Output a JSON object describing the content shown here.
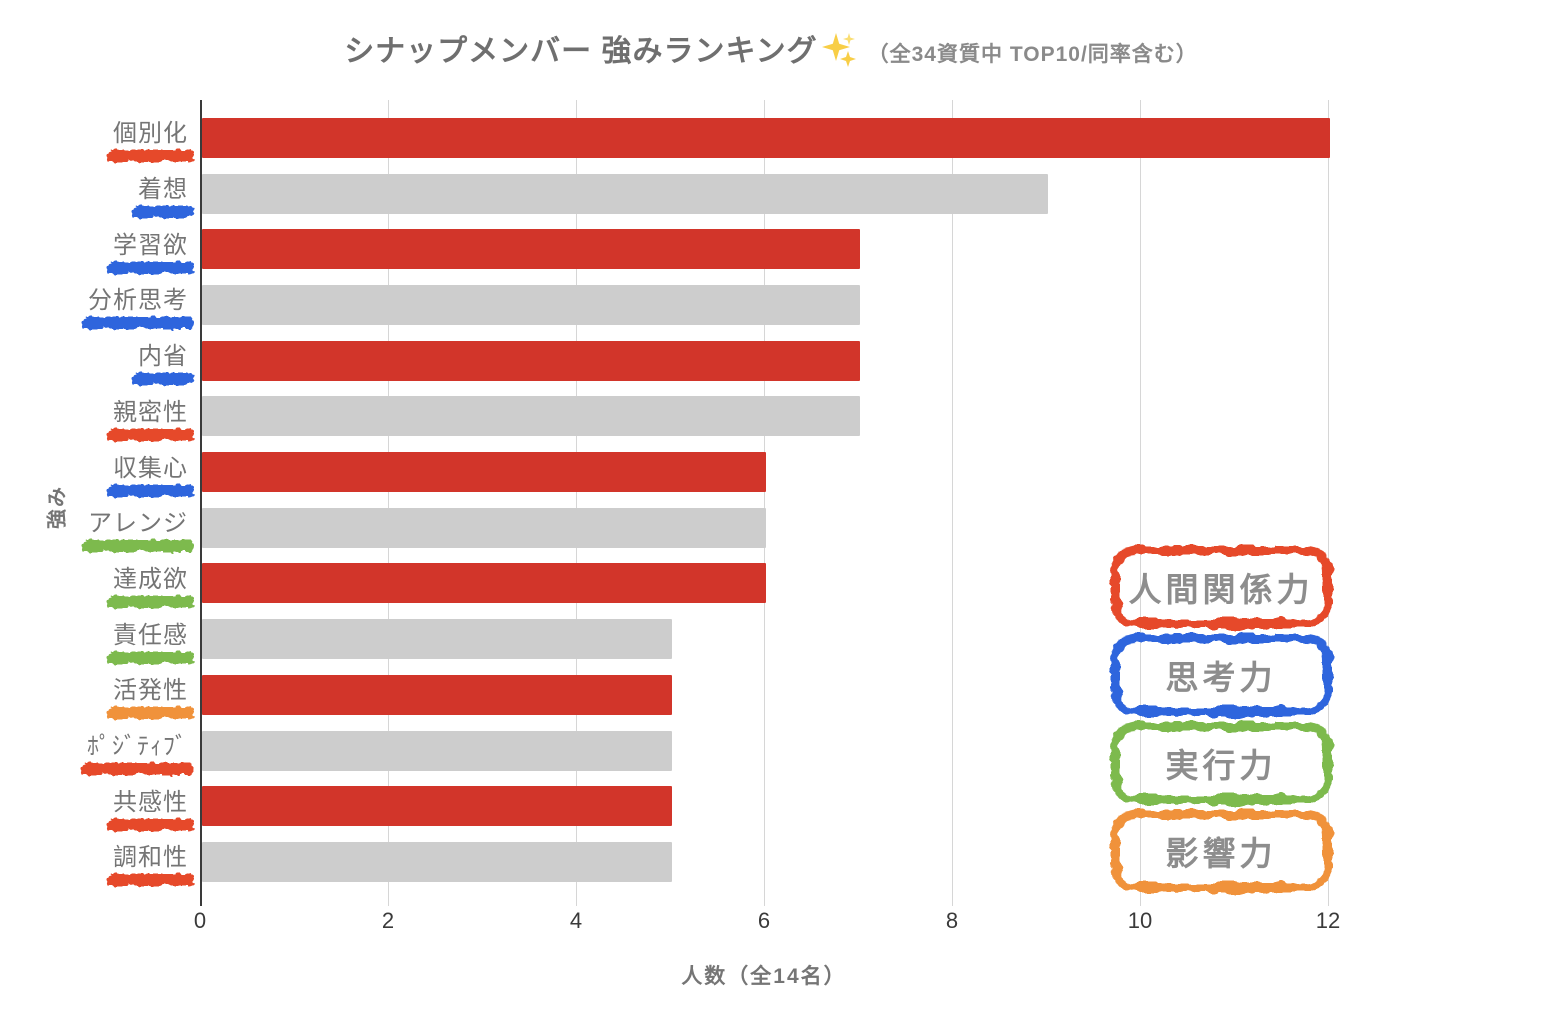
{
  "title": {
    "main": "シナップメンバー 強みランキング",
    "sparkle_icon": "sparkles-icon",
    "suffix": "（全34資質中 TOP10/同率含む）"
  },
  "axes": {
    "x_label": "人数（全14名）",
    "y_label": "強み"
  },
  "legend": {
    "position": "right-inside",
    "items": [
      {
        "label": "人間関係力",
        "color_key": "red"
      },
      {
        "label": "思考力",
        "color_key": "blue"
      },
      {
        "label": "実行力",
        "color_key": "green"
      },
      {
        "label": "影響力",
        "color_key": "orange"
      }
    ]
  },
  "chart_data": {
    "type": "bar",
    "orientation": "horizontal",
    "title": "シナップメンバー 強みランキング✨（全34資質中 TOP10/同率含む）",
    "xlabel": "人数（全14名）",
    "ylabel": "強み",
    "xlim": [
      0,
      12
    ],
    "x_ticks": [
      0,
      2,
      4,
      6,
      8,
      10,
      12
    ],
    "grid": true,
    "categories": [
      "個別化",
      "着想",
      "学習欲",
      "分析思考",
      "内省",
      "親密性",
      "収集心",
      "アレンジ",
      "達成欲",
      "責任感",
      "活発性",
      "ﾎﾟｼﾞﾃｨﾌﾞ",
      "共感性",
      "調和性"
    ],
    "values": [
      12,
      9,
      7,
      7,
      7,
      7,
      6,
      6,
      6,
      5,
      5,
      5,
      5,
      5
    ],
    "bar_colors": [
      "red",
      "gray",
      "red",
      "gray",
      "red",
      "gray",
      "red",
      "gray",
      "red",
      "gray",
      "red",
      "gray",
      "red",
      "gray"
    ],
    "underline_colors": [
      "red",
      "blue",
      "blue",
      "blue",
      "blue",
      "red",
      "blue",
      "green",
      "green",
      "green",
      "orange",
      "red",
      "red",
      "red"
    ],
    "category_domain": [
      "人間関係力",
      "思考力",
      "思考力",
      "思考力",
      "思考力",
      "人間関係力",
      "思考力",
      "実行力",
      "実行力",
      "実行力",
      "影響力",
      "人間関係力",
      "人間関係力",
      "人間関係力"
    ]
  },
  "colors": {
    "bar_red": "#d2352a",
    "bar_gray": "#cdcdcd",
    "red": "#e6492c",
    "blue": "#2f65dd",
    "green": "#7dba4e",
    "orange": "#f0923b",
    "axis_line": "#3a3a3a",
    "gridline": "#d6d6d6",
    "sparkle": "#f8ce46"
  }
}
